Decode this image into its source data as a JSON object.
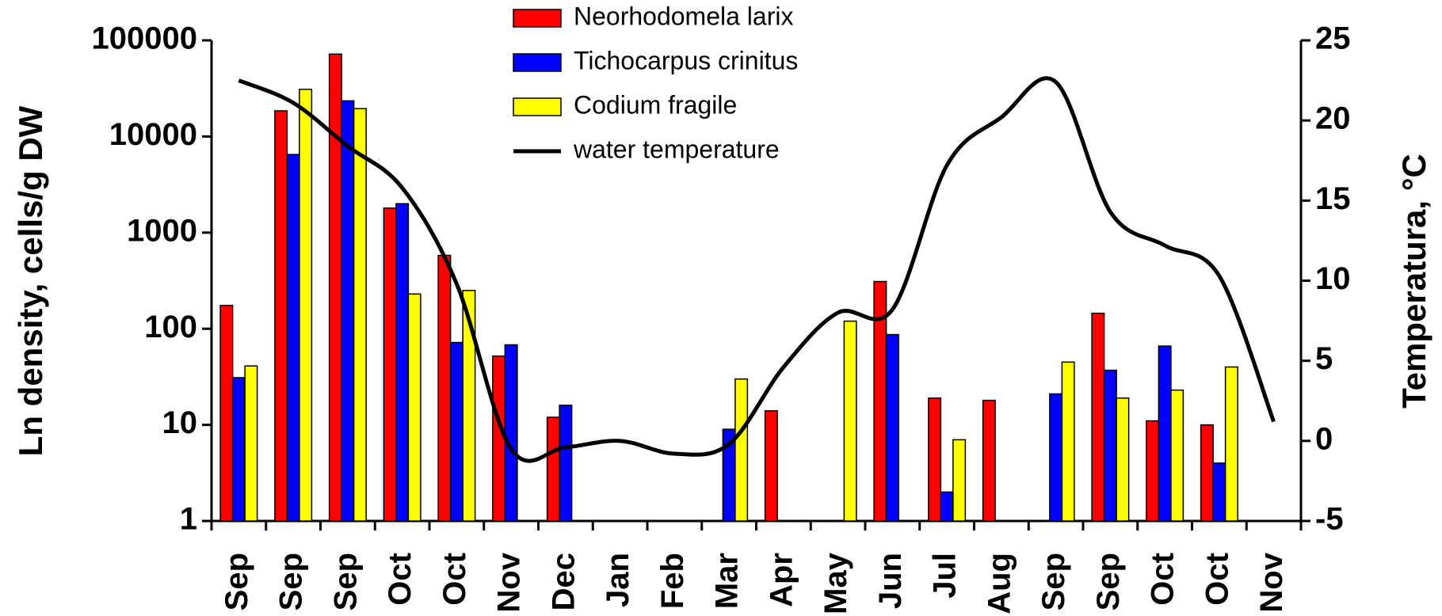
{
  "chart_data": {
    "type": "bar",
    "y_label": "Ln density, cells/g DW",
    "y2_label": "Temperatura, °C",
    "categories": [
      "Sep",
      "Sep",
      "Sep",
      "Oct",
      "Oct",
      "Nov",
      "Dec",
      "Jan",
      "Feb",
      "Mar",
      "Apr",
      "May",
      "Jun",
      "Jul",
      "Aug",
      "Sep",
      "Sep",
      "Oct",
      "Oct",
      "Nov"
    ],
    "series": [
      {
        "name": "Neorhodomela larix",
        "color": "#ff0000",
        "values": [
          175,
          18500,
          72000,
          1800,
          580,
          52,
          12,
          null,
          null,
          null,
          14,
          null,
          310,
          19,
          18,
          null,
          145,
          11,
          10,
          null
        ]
      },
      {
        "name": "Tichocarpus crinitus",
        "color": "#0000ff",
        "values": [
          31,
          6500,
          23500,
          2000,
          72,
          68,
          16,
          null,
          null,
          9,
          null,
          null,
          87,
          2,
          null,
          21,
          37,
          66,
          4,
          null
        ]
      },
      {
        "name": "Codium fragile",
        "color": "#ffff00",
        "values": [
          41,
          31000,
          19500,
          230,
          250,
          null,
          null,
          null,
          null,
          30,
          null,
          120,
          null,
          7,
          null,
          45,
          19,
          23,
          40,
          null
        ]
      },
      {
        "name": "water temperature",
        "color": "#000000",
        "type": "line",
        "axis": "y2",
        "values": [
          22.5,
          21.1,
          18.4,
          15.8,
          9.8,
          -0.5,
          -0.4,
          0.0,
          -0.8,
          -0.2,
          4.6,
          8.0,
          8.2,
          17.2,
          20.2,
          22.4,
          14.3,
          12.2,
          10.3,
          1.2
        ]
      }
    ],
    "ylog": true,
    "ylim": [
      1,
      100000
    ],
    "yticks": [
      1,
      10,
      100,
      1000,
      10000,
      100000
    ],
    "y2lim": [
      -5,
      25
    ],
    "y2ticks": [
      -5,
      0,
      5,
      10,
      15,
      20,
      25
    ],
    "legend": "top"
  }
}
